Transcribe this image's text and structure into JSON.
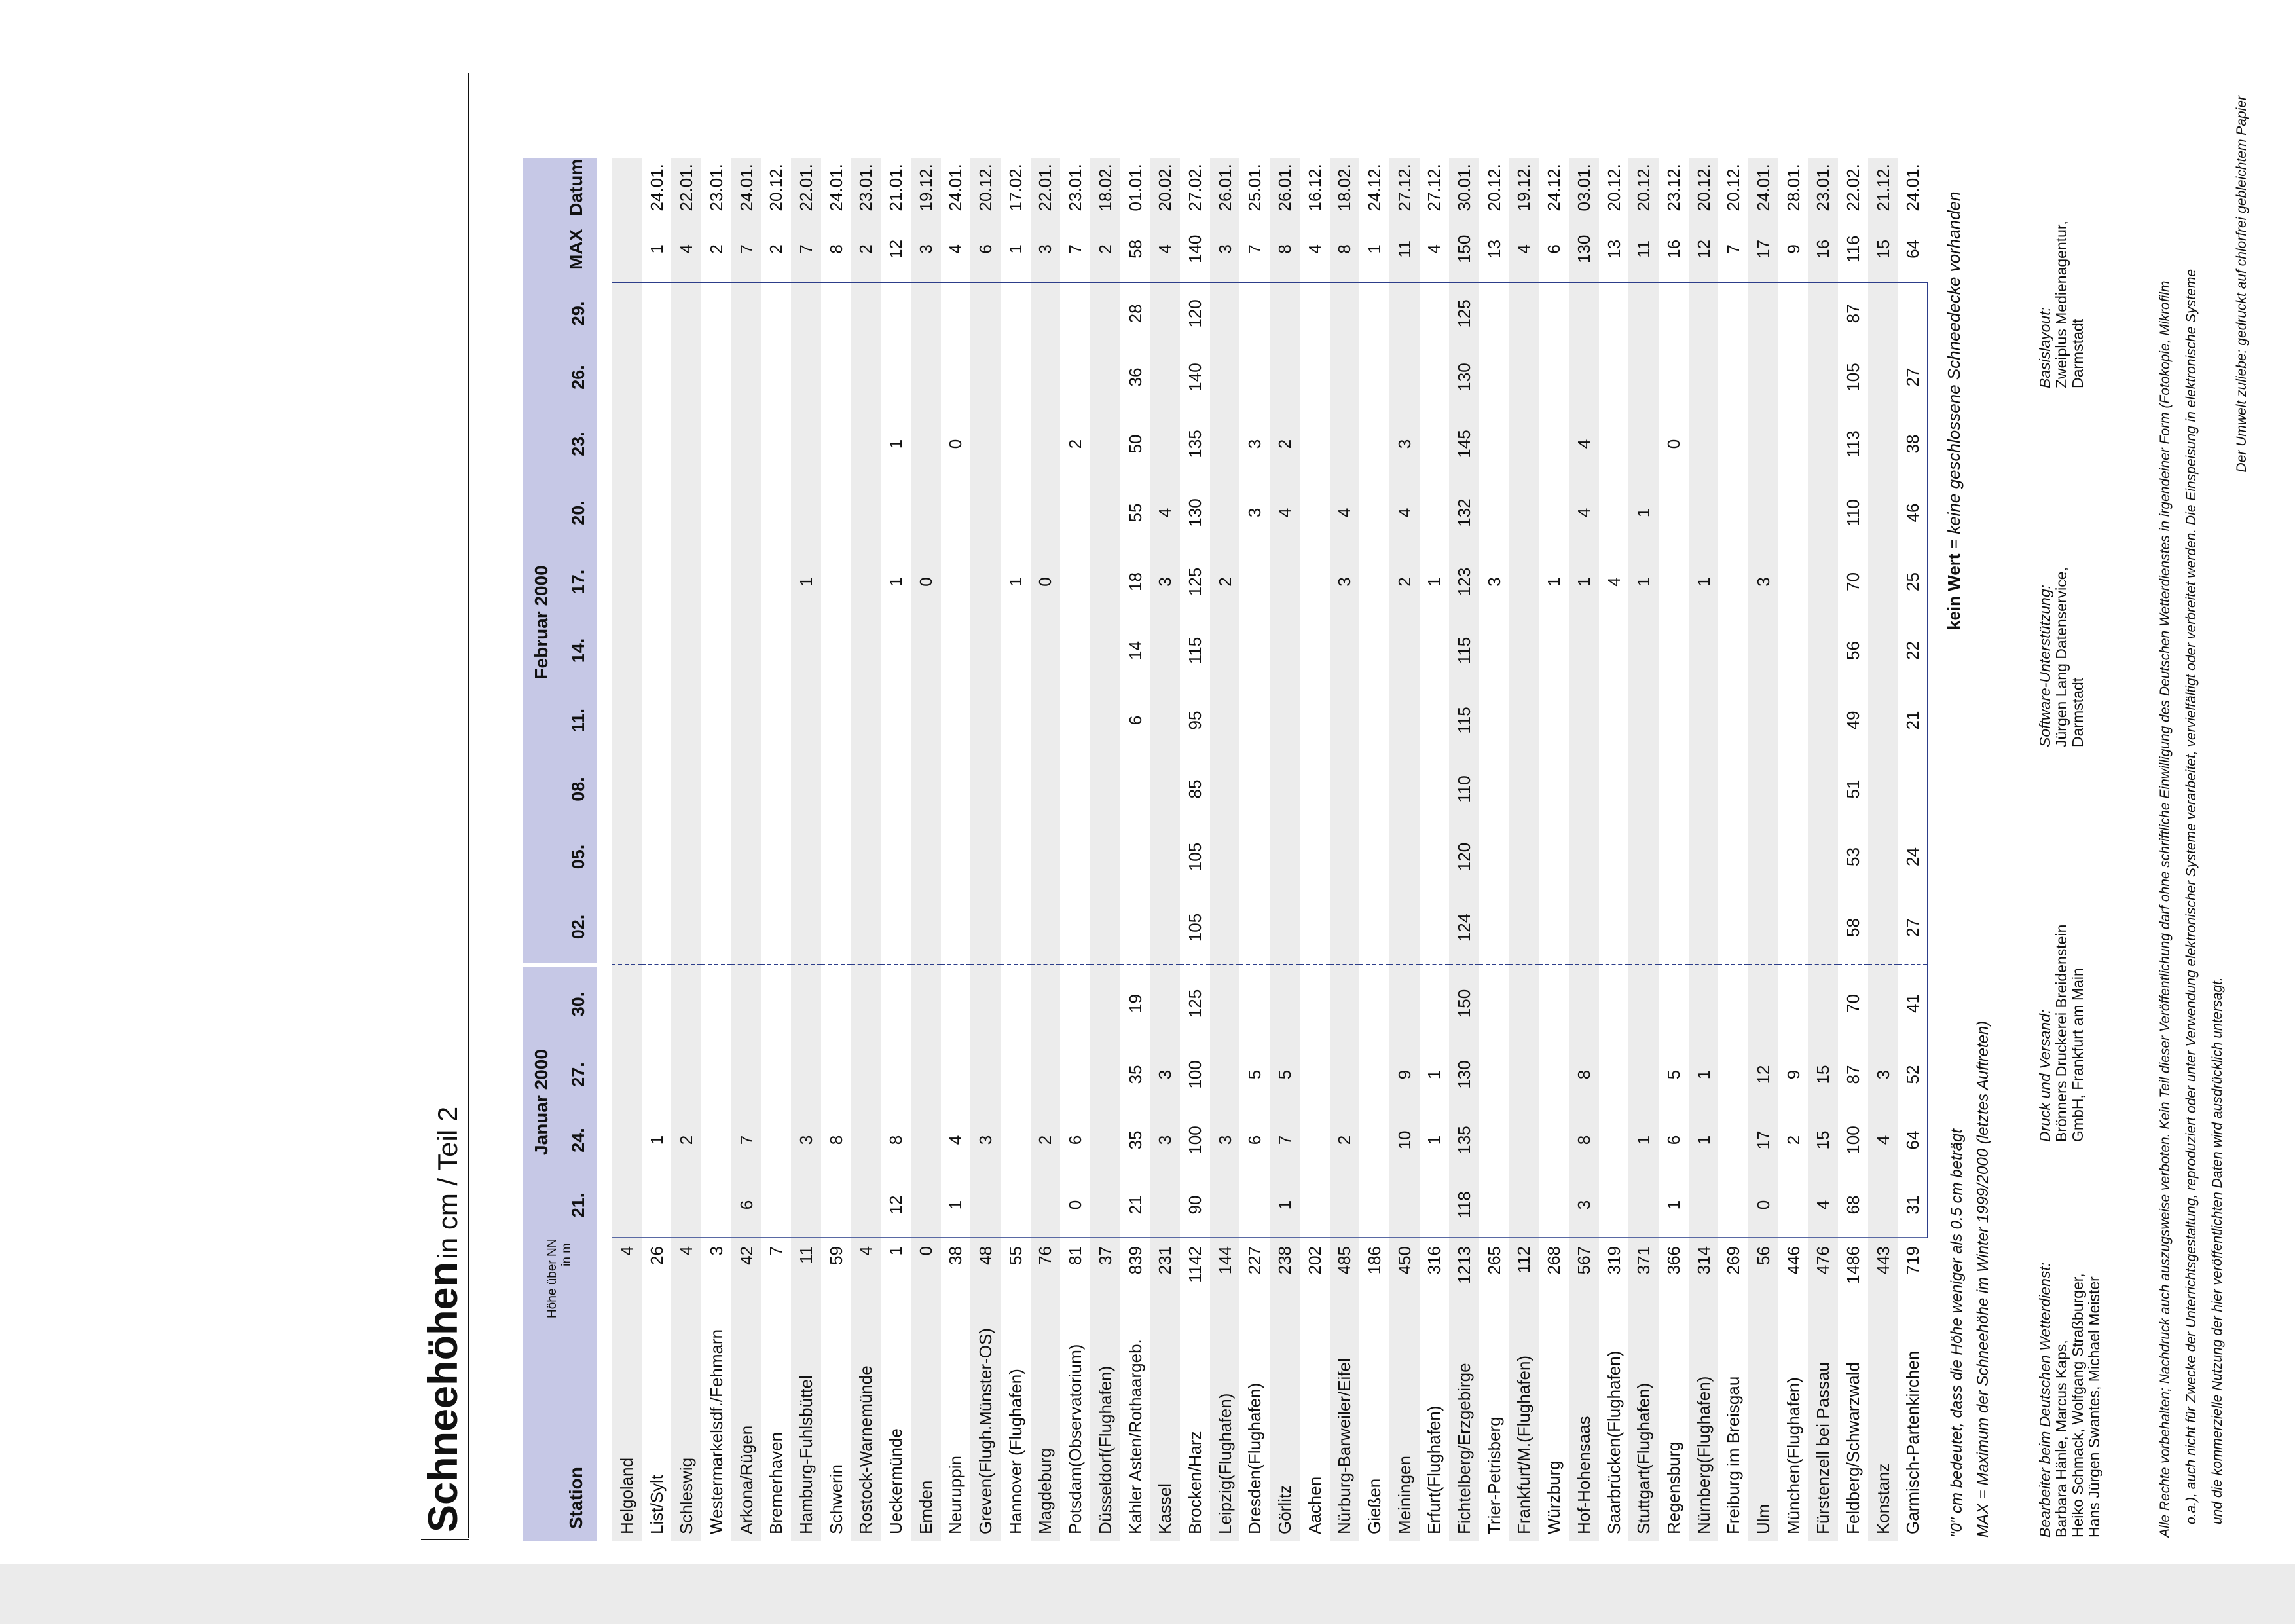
{
  "header": {
    "title": "Schneehöhen",
    "subtitle": "in cm / Teil 2"
  },
  "table": {
    "station": "Station",
    "height": [
      "Höhe über NN",
      "in m"
    ],
    "groups": [
      {
        "label": "Januar 2000",
        "days": [
          "21.",
          "24.",
          "27.",
          "30."
        ]
      },
      {
        "label": "Februar 2000",
        "days": [
          "02.",
          "05.",
          "08.",
          "11.",
          "14.",
          "17.",
          "20.",
          "23.",
          "26.",
          "29."
        ]
      }
    ],
    "max": "MAX",
    "date": "Datum",
    "rows": [
      [
        "Helgoland",
        4,
        null,
        null,
        null,
        null,
        null,
        null,
        null,
        null,
        null,
        null,
        null,
        null,
        null,
        null,
        null,
        null
      ],
      [
        "List/Sylt",
        26,
        null,
        1,
        null,
        null,
        null,
        null,
        null,
        null,
        null,
        null,
        null,
        null,
        null,
        null,
        1,
        "24.01."
      ],
      [
        "Schleswig",
        4,
        null,
        2,
        null,
        null,
        null,
        null,
        null,
        null,
        null,
        null,
        null,
        null,
        null,
        null,
        4,
        "22.01."
      ],
      [
        "Westermarkelsdf./Fehmarn",
        3,
        null,
        null,
        null,
        null,
        null,
        null,
        null,
        null,
        null,
        null,
        null,
        null,
        null,
        null,
        2,
        "23.01."
      ],
      [
        "Arkona/Rügen",
        42,
        6,
        7,
        null,
        null,
        null,
        null,
        null,
        null,
        null,
        null,
        null,
        null,
        null,
        null,
        7,
        "24.01."
      ],
      [
        "Bremerhaven",
        7,
        null,
        null,
        null,
        null,
        null,
        null,
        null,
        null,
        null,
        null,
        null,
        null,
        null,
        null,
        2,
        "20.12."
      ],
      [
        "Hamburg-Fuhlsbüttel",
        11,
        null,
        3,
        null,
        null,
        null,
        null,
        null,
        null,
        null,
        1,
        null,
        null,
        null,
        null,
        7,
        "22.01."
      ],
      [
        "Schwerin",
        59,
        null,
        8,
        null,
        null,
        null,
        null,
        null,
        null,
        null,
        null,
        null,
        null,
        null,
        null,
        8,
        "24.01."
      ],
      [
        "Rostock-Warnemünde",
        4,
        null,
        null,
        null,
        null,
        null,
        null,
        null,
        null,
        null,
        null,
        null,
        null,
        null,
        null,
        2,
        "23.01."
      ],
      [
        "Ueckermünde",
        1,
        12,
        8,
        null,
        null,
        null,
        null,
        null,
        null,
        null,
        1,
        null,
        1,
        null,
        null,
        12,
        "21.01."
      ],
      [
        "Emden",
        0,
        null,
        null,
        null,
        null,
        null,
        null,
        null,
        null,
        null,
        0,
        null,
        null,
        null,
        null,
        3,
        "19.12."
      ],
      [
        "Neuruppin",
        38,
        1,
        4,
        null,
        null,
        null,
        null,
        null,
        null,
        null,
        null,
        null,
        0,
        null,
        null,
        4,
        "24.01."
      ],
      [
        "Greven(Flugh.Münster-OS)",
        48,
        null,
        3,
        null,
        null,
        null,
        null,
        null,
        null,
        null,
        null,
        null,
        null,
        null,
        null,
        6,
        "20.12."
      ],
      [
        "Hannover (Flughafen)",
        55,
        null,
        null,
        null,
        null,
        null,
        null,
        null,
        null,
        null,
        1,
        null,
        null,
        null,
        null,
        1,
        "17.02."
      ],
      [
        "Magdeburg",
        76,
        null,
        2,
        null,
        null,
        null,
        null,
        null,
        null,
        null,
        0,
        null,
        null,
        null,
        null,
        3,
        "22.01."
      ],
      [
        "Potsdam(Observatorium)",
        81,
        0,
        6,
        null,
        null,
        null,
        null,
        null,
        null,
        null,
        null,
        null,
        2,
        null,
        null,
        7,
        "23.01."
      ],
      [
        "Düsseldorf(Flughafen)",
        37,
        null,
        null,
        null,
        null,
        null,
        null,
        null,
        null,
        null,
        null,
        null,
        null,
        null,
        null,
        2,
        "18.02."
      ],
      [
        "Kahler Asten/Rothaargeb.",
        839,
        21,
        35,
        35,
        19,
        null,
        null,
        null,
        6,
        14,
        18,
        55,
        50,
        36,
        28,
        58,
        "01.01."
      ],
      [
        "Kassel",
        231,
        null,
        3,
        3,
        null,
        null,
        null,
        null,
        null,
        null,
        3,
        4,
        null,
        null,
        null,
        4,
        "20.02."
      ],
      [
        "Brocken/Harz",
        1142,
        90,
        100,
        100,
        125,
        105,
        105,
        85,
        95,
        115,
        125,
        130,
        135,
        140,
        120,
        140,
        "27.02."
      ],
      [
        "Leipzig(Flughafen)",
        144,
        null,
        3,
        null,
        null,
        null,
        null,
        null,
        null,
        null,
        2,
        null,
        null,
        null,
        null,
        3,
        "26.01."
      ],
      [
        "Dresden(Flughafen)",
        227,
        null,
        6,
        5,
        null,
        null,
        null,
        null,
        null,
        null,
        null,
        3,
        3,
        null,
        null,
        7,
        "25.01."
      ],
      [
        "Görlitz",
        238,
        1,
        7,
        5,
        null,
        null,
        null,
        null,
        null,
        null,
        null,
        4,
        2,
        null,
        null,
        8,
        "26.01."
      ],
      [
        "Aachen",
        202,
        null,
        null,
        null,
        null,
        null,
        null,
        null,
        null,
        null,
        null,
        null,
        null,
        null,
        null,
        4,
        "16.12."
      ],
      [
        "Nürburg-Barweiler/Eifel",
        485,
        null,
        2,
        null,
        null,
        null,
        null,
        null,
        null,
        null,
        3,
        4,
        null,
        null,
        null,
        8,
        "18.02."
      ],
      [
        "Gießen",
        186,
        null,
        null,
        null,
        null,
        null,
        null,
        null,
        null,
        null,
        null,
        null,
        null,
        null,
        null,
        1,
        "24.12."
      ],
      [
        "Meiningen",
        450,
        null,
        10,
        9,
        null,
        null,
        null,
        null,
        null,
        null,
        2,
        4,
        3,
        null,
        null,
        11,
        "27.12."
      ],
      [
        "Erfurt(Flughafen)",
        316,
        null,
        1,
        1,
        null,
        null,
        null,
        null,
        null,
        null,
        1,
        null,
        null,
        null,
        null,
        4,
        "27.12."
      ],
      [
        "Fichtelberg/Erzgebirge",
        1213,
        118,
        135,
        130,
        150,
        124,
        120,
        110,
        115,
        115,
        123,
        132,
        145,
        130,
        125,
        150,
        "30.01."
      ],
      [
        "Trier-Petrisberg",
        265,
        null,
        null,
        null,
        null,
        null,
        null,
        null,
        null,
        null,
        3,
        null,
        null,
        null,
        null,
        13,
        "20.12."
      ],
      [
        "Frankfurt/M.(Flughafen)",
        112,
        null,
        null,
        null,
        null,
        null,
        null,
        null,
        null,
        null,
        null,
        null,
        null,
        null,
        null,
        4,
        "19.12."
      ],
      [
        "Würzburg",
        268,
        null,
        null,
        null,
        null,
        null,
        null,
        null,
        null,
        null,
        1,
        null,
        null,
        null,
        null,
        6,
        "24.12."
      ],
      [
        "Hof-Hohensaas",
        567,
        3,
        8,
        8,
        null,
        null,
        null,
        null,
        null,
        null,
        1,
        4,
        4,
        null,
        null,
        130,
        "03.01."
      ],
      [
        "Saarbrücken(Flughafen)",
        319,
        null,
        null,
        null,
        null,
        null,
        null,
        null,
        null,
        null,
        4,
        null,
        null,
        null,
        null,
        13,
        "20.12."
      ],
      [
        "Stuttgart(Flughafen)",
        371,
        null,
        1,
        null,
        null,
        null,
        null,
        null,
        null,
        null,
        1,
        1,
        null,
        null,
        null,
        11,
        "20.12."
      ],
      [
        "Regensburg",
        366,
        1,
        6,
        5,
        null,
        null,
        null,
        null,
        null,
        null,
        null,
        null,
        0,
        null,
        null,
        16,
        "23.12."
      ],
      [
        "Nürnberg(Flughafen)",
        314,
        null,
        1,
        1,
        null,
        null,
        null,
        null,
        null,
        null,
        1,
        null,
        null,
        null,
        null,
        12,
        "20.12."
      ],
      [
        "Freiburg im Breisgau",
        269,
        null,
        null,
        null,
        null,
        null,
        null,
        null,
        null,
        null,
        null,
        null,
        null,
        null,
        null,
        7,
        "20.12."
      ],
      [
        "Ulm",
        56,
        0,
        17,
        12,
        null,
        null,
        null,
        null,
        null,
        null,
        3,
        null,
        null,
        null,
        null,
        17,
        "24.01."
      ],
      [
        "München(Flughafen)",
        446,
        null,
        2,
        9,
        null,
        null,
        null,
        null,
        null,
        null,
        null,
        null,
        null,
        null,
        null,
        9,
        "28.01."
      ],
      [
        "Fürstenzell bei Passau",
        476,
        4,
        15,
        15,
        null,
        null,
        null,
        null,
        null,
        null,
        null,
        null,
        null,
        null,
        null,
        16,
        "23.01."
      ],
      [
        "Feldberg/Schwarzwald",
        1486,
        68,
        100,
        87,
        70,
        58,
        53,
        51,
        49,
        56,
        70,
        110,
        113,
        105,
        87,
        116,
        "22.02."
      ],
      [
        "Konstanz",
        443,
        null,
        4,
        3,
        null,
        null,
        null,
        null,
        null,
        null,
        null,
        null,
        null,
        null,
        null,
        15,
        "21.12."
      ],
      [
        "Garmisch-Partenkirchen",
        719,
        31,
        64,
        52,
        41,
        27,
        24,
        null,
        21,
        22,
        25,
        46,
        38,
        27,
        null,
        64,
        "24.01."
      ]
    ]
  },
  "legend": {
    "term": "kein Wert",
    "equals": "=",
    "definition": "keine geschlossene Schneedecke vorhanden"
  },
  "notes": [
    "\"0\" cm bedeutet, dass die Höhe weniger als 0.5 cm beträgt",
    "MAX = Maximum der Schneehöhe im Winter 1999/2000 (letztes Auftreten)"
  ],
  "credits": [
    {
      "heading": "Bearbeiter beim Deutschen Wetterdienst:",
      "lines": [
        "Barbara Hänle, Marcus Kaps,",
        "Heiko Schmack, Wolfgang Straßburger,",
        "Hans Jürgen Swantes, Michael Meister"
      ]
    },
    {
      "heading": "Druck und Versand:",
      "lines": [
        "Brönners Druckerei Breidenstein",
        "GmbH, Frankfurt am Main"
      ]
    },
    {
      "heading": "Software-Unterstützung:",
      "lines": [
        "Jürgen Lang Datenservice,",
        "Darmstadt"
      ]
    },
    {
      "heading": "Basislayout:",
      "lines": [
        "Zweiplus Medienagentur,",
        "Darmstadt"
      ]
    }
  ],
  "copyright": [
    "Alle Rechte vorbehalten; Nachdruck auch auszugsweise verboten. Kein Teil dieser Veröffentlichung darf ohne schriftliche Einwilligung des Deutschen Wetterdienstes in irgendeiner Form (Fotokopie, Mikrofilm",
    "o.a.), auch nicht für Zwecke der Unterrichtsgestaltung, reproduziert oder unter Verwendung elektronischer Systeme verarbeitet, vervielfältigt oder verbreitet werden. Die Einspeisung in elektronische Systeme",
    "und die kommerzielle Nutzung der hier veröffentlichten Daten wird ausdrücklich untersagt."
  ],
  "footer": "Der Umwelt zuliebe: gedruckt auf chlorfrei gebleichtem Papier"
}
